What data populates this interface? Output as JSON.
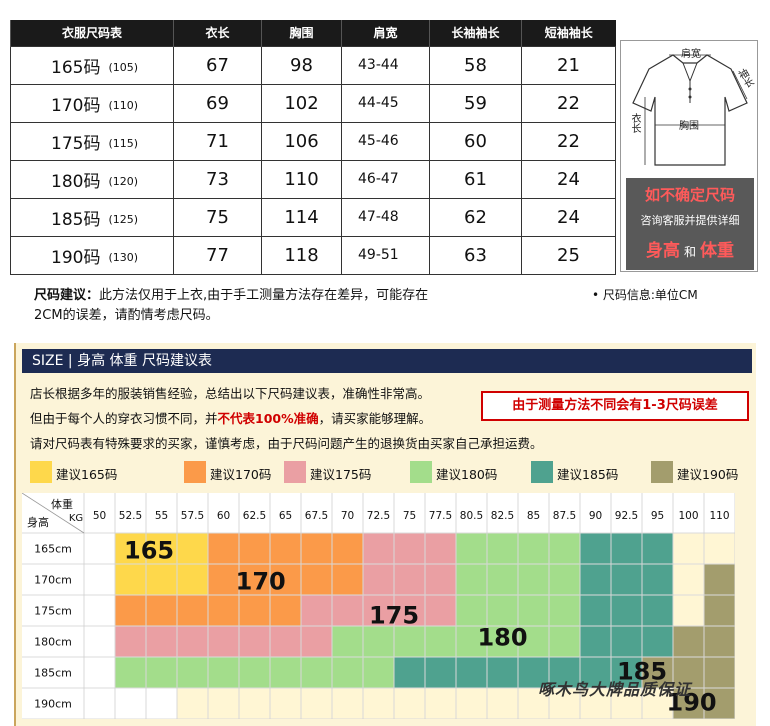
{
  "size_table": {
    "headers": [
      "衣服尺码表",
      "衣长",
      "胸围",
      "肩宽",
      "长袖袖长",
      "短袖袖长"
    ],
    "rows": [
      {
        "size": "165码",
        "alt": "(105)",
        "length": "67",
        "chest": "98",
        "shoulder": "43-44",
        "long_sleeve": "58",
        "short_sleeve": "21"
      },
      {
        "size": "170码",
        "alt": "(110)",
        "length": "69",
        "chest": "102",
        "shoulder": "44-45",
        "long_sleeve": "59",
        "short_sleeve": "22"
      },
      {
        "size": "175码",
        "alt": "(115)",
        "length": "71",
        "chest": "106",
        "shoulder": "45-46",
        "long_sleeve": "60",
        "short_sleeve": "22"
      },
      {
        "size": "180码",
        "alt": "(120)",
        "length": "73",
        "chest": "110",
        "shoulder": "46-47",
        "long_sleeve": "61",
        "short_sleeve": "24"
      },
      {
        "size": "185码",
        "alt": "(125)",
        "length": "75",
        "chest": "114",
        "shoulder": "47-48",
        "long_sleeve": "62",
        "short_sleeve": "24"
      },
      {
        "size": "190码",
        "alt": "(130)",
        "length": "77",
        "chest": "118",
        "shoulder": "49-51",
        "long_sleeve": "63",
        "short_sleeve": "25"
      }
    ]
  },
  "illustration": {
    "shoulder_label": "肩宽",
    "sleeve_label": "袖长",
    "length_label": "衣长",
    "chest_label": "胸围",
    "icon": "polo-shirt-icon"
  },
  "notice": {
    "title": "如不确定尺码",
    "subtitle": "咨询客服并提供详细",
    "height": "身高",
    "and": "和",
    "weight": "体重"
  },
  "advice": {
    "label": "尺码建议：",
    "text": "此方法仅用于上衣,由于手工测量方法存在差异，可能存在2CM的误差，请酌情考虑尺码。"
  },
  "unit_note": "• 尺码信息:单位CM",
  "lower": {
    "header": "SIZE | 身高 体重 尺码建议表",
    "line1": "店长根据多年的服装销售经验，总结出以下尺码建议表，准确性非常高。",
    "line2_a": "但由于每个人的穿衣习惯不同，并",
    "line2_red": "不代表100%准确",
    "line2_b": "，请买家能够理解。",
    "line3": "请对尺码表有特殊要求的买家，谨慎考虑，由于尺码问题产生的退换货由买家自己承担运费。",
    "warning": "由于测量方法不同会有1-3尺码误差"
  },
  "legend": [
    {
      "label": "建议165码",
      "color": "#fed84b"
    },
    {
      "label": "建议170码",
      "color": "#fb9a49"
    },
    {
      "label": "建议175码",
      "color": "#ea9fa3"
    },
    {
      "label": "建议180码",
      "color": "#a3dd8b"
    },
    {
      "label": "建议185码",
      "color": "#4fa28f"
    },
    {
      "label": "建议190码",
      "color": "#a39d6d"
    }
  ],
  "chart_data": {
    "type": "heatmap",
    "corner_weight_label": "体重",
    "corner_weight_unit": "KG",
    "corner_height_label": "身高",
    "weights": [
      "50",
      "52.5",
      "55",
      "57.5",
      "60",
      "62.5",
      "65",
      "67.5",
      "70",
      "72.5",
      "75",
      "77.5",
      "80.5",
      "82.5",
      "85",
      "87.5",
      "90",
      "92.5",
      "95",
      "100",
      "110"
    ],
    "heights": [
      "165cm",
      "170cm",
      "175cm",
      "180cm",
      "185cm",
      "190cm"
    ],
    "grid": [
      [
        0,
        1,
        1,
        1,
        2,
        2,
        2,
        2,
        2,
        3,
        3,
        3,
        4,
        4,
        4,
        4,
        5,
        5,
        5,
        6,
        6
      ],
      [
        0,
        1,
        1,
        1,
        2,
        2,
        2,
        2,
        2,
        3,
        3,
        3,
        4,
        4,
        4,
        4,
        5,
        5,
        5,
        6,
        7
      ],
      [
        0,
        2,
        2,
        2,
        2,
        2,
        2,
        3,
        3,
        3,
        3,
        3,
        4,
        4,
        4,
        4,
        5,
        5,
        5,
        6,
        7
      ],
      [
        0,
        3,
        3,
        3,
        3,
        3,
        3,
        3,
        4,
        4,
        4,
        4,
        4,
        4,
        4,
        4,
        5,
        5,
        5,
        7,
        7
      ],
      [
        0,
        4,
        4,
        4,
        4,
        4,
        4,
        4,
        4,
        4,
        5,
        5,
        5,
        5,
        5,
        5,
        5,
        5,
        7,
        7,
        7
      ],
      [
        0,
        0,
        0,
        6,
        6,
        6,
        6,
        6,
        6,
        6,
        6,
        6,
        6,
        6,
        6,
        6,
        6,
        6,
        6,
        7,
        7
      ]
    ],
    "palette": [
      "#ffffff",
      "#fed84b",
      "#fb9a49",
      "#ea9fa3",
      "#a3dd8b",
      "#4fa28f",
      "#fff6d4",
      "#a39d6d"
    ],
    "size_labels": [
      {
        "text": "165",
        "row": 0.5,
        "col": 2.1
      },
      {
        "text": "170",
        "row": 1.5,
        "col": 5.7
      },
      {
        "text": "175",
        "row": 2.6,
        "col": 10.0
      },
      {
        "text": "180",
        "row": 3.3,
        "col": 13.5
      },
      {
        "text": "185",
        "row": 4.4,
        "col": 18.0
      },
      {
        "text": "190",
        "row": 5.4,
        "col": 19.6
      }
    ]
  },
  "watermark": "啄木鸟大牌品质保证"
}
